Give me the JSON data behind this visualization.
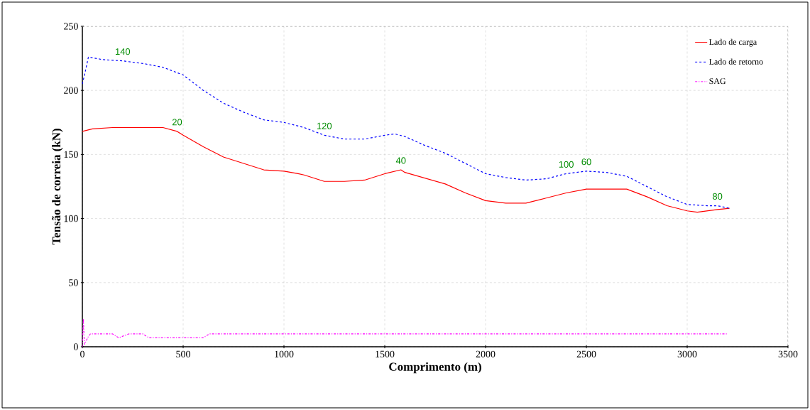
{
  "chart_data": {
    "type": "line",
    "xlabel": "Comprimento (m)",
    "ylabel": "Tensão de correia (kN)",
    "xlim": [
      0,
      3500
    ],
    "xticks": [
      0,
      500,
      1000,
      1500,
      2000,
      2500,
      3000,
      3500
    ],
    "ylim": [
      0,
      250
    ],
    "yticks": [
      0,
      50,
      100,
      150,
      200,
      250
    ],
    "grid": true,
    "legend": "top right",
    "marker": "none",
    "series": [
      {
        "name": "Lado de carga",
        "color": "#ff0000",
        "line_style": "solid",
        "x": [
          0,
          50,
          150,
          300,
          400,
          470,
          500,
          600,
          700,
          900,
          1000,
          1070,
          1100,
          1200,
          1300,
          1400,
          1500,
          1580,
          1600,
          1800,
          1900,
          2000,
          2100,
          2200,
          2300,
          2400,
          2500,
          2700,
          2800,
          2900,
          3000,
          3050,
          3150,
          3210
        ],
        "values": [
          168,
          170,
          171,
          171,
          171,
          168,
          165,
          156,
          148,
          138,
          137,
          135,
          134,
          129,
          129,
          130,
          135,
          138,
          136,
          127,
          120,
          114,
          112,
          112,
          116,
          120,
          123,
          123,
          117,
          110,
          106,
          105,
          107,
          108
        ]
      },
      {
        "name": "Lado de retorno",
        "color": "#0000ff",
        "line_style": "dashed",
        "x": [
          0,
          15,
          30,
          100,
          200,
          300,
          400,
          500,
          600,
          700,
          800,
          900,
          1000,
          1050,
          1100,
          1200,
          1300,
          1400,
          1500,
          1550,
          1600,
          1700,
          1800,
          1900,
          2000,
          2100,
          2200,
          2300,
          2400,
          2500,
          2600,
          2700,
          2800,
          2900,
          3000,
          3100,
          3150,
          3210
        ],
        "values": [
          205,
          215,
          226,
          224,
          223,
          221,
          218,
          212,
          200,
          190,
          183,
          177,
          175,
          173,
          171,
          165,
          162,
          162,
          165,
          166,
          164,
          157,
          151,
          143,
          135,
          132,
          130,
          131,
          135,
          137,
          136,
          133,
          125,
          117,
          111,
          110,
          110,
          108
        ]
      },
      {
        "name": "SAG",
        "color": "#ff00ff",
        "line_style": "dotted",
        "x": [
          0,
          5,
          10,
          20,
          30,
          40,
          150,
          180,
          230,
          300,
          330,
          600,
          630,
          3200
        ],
        "values": [
          0,
          22,
          2,
          5,
          8,
          10,
          10,
          7,
          10,
          10,
          7,
          7,
          10,
          10
        ]
      }
    ],
    "annotations": [
      {
        "text": "140",
        "x": 200,
        "y": 223
      },
      {
        "text": "20",
        "x": 470,
        "y": 168
      },
      {
        "text": "120",
        "x": 1200,
        "y": 165
      },
      {
        "text": "40",
        "x": 1580,
        "y": 138
      },
      {
        "text": "100",
        "x": 2400,
        "y": 135
      },
      {
        "text": "60",
        "x": 2500,
        "y": 137
      },
      {
        "text": "80",
        "x": 3150,
        "y": 110
      }
    ]
  }
}
